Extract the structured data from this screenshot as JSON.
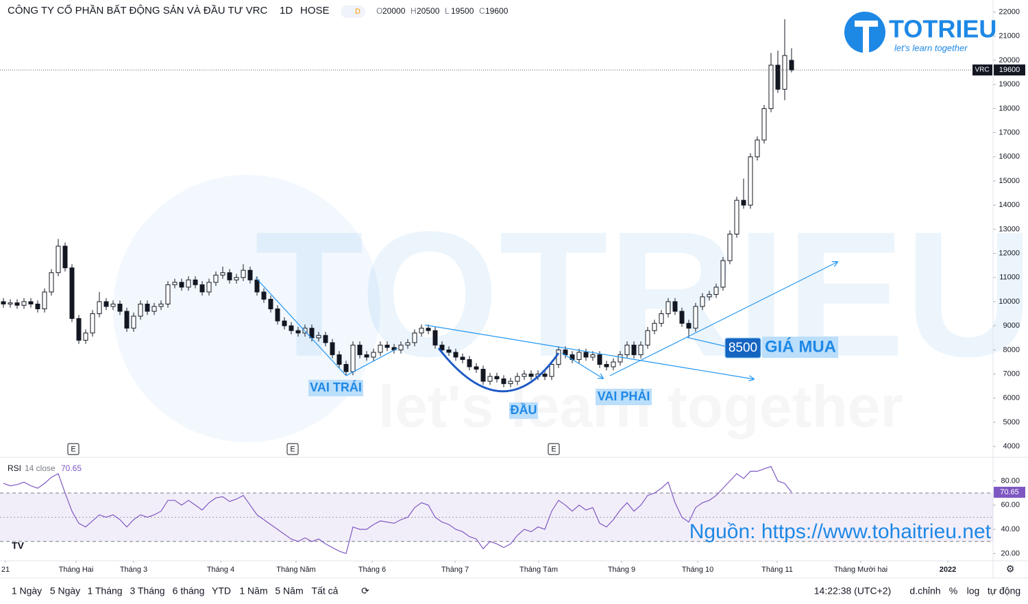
{
  "header": {
    "title": "CÔNG TY CỔ PHẦN BẤT ĐỘNG SẢN VÀ ĐẦU TƯ VRC",
    "interval": "1D",
    "exchange": "HOSE",
    "badge": "D",
    "ohlc_labels": [
      "O",
      "H",
      "L",
      "C"
    ]
  },
  "logo": {
    "name": "TOTRIEU",
    "tagline": "let's learn together"
  },
  "watermark": {
    "name": "TOTRIEU",
    "tagline": "let's learn together"
  },
  "chart_data": {
    "type": "candlestick",
    "symbol": "VRC",
    "up_color": "#ffffff",
    "down_color": "#131722",
    "ohlc": [
      [
        10000,
        10150,
        9750,
        9900
      ],
      [
        9900,
        10100,
        9750,
        9950
      ],
      [
        9950,
        10100,
        9700,
        9850
      ],
      [
        9850,
        10150,
        9700,
        10000
      ],
      [
        10000,
        10150,
        9750,
        9900
      ],
      [
        9900,
        10050,
        9550,
        9700
      ],
      [
        9700,
        10550,
        9550,
        10400
      ],
      [
        10400,
        11350,
        10250,
        11200
      ],
      [
        11200,
        12600,
        11050,
        12300
      ],
      [
        12300,
        12450,
        11250,
        11400
      ],
      [
        11400,
        11550,
        9150,
        9300
      ],
      [
        9300,
        9450,
        8250,
        8400
      ],
      [
        8400,
        8850,
        8250,
        8700
      ],
      [
        8700,
        9650,
        8550,
        9500
      ],
      [
        9500,
        10400,
        9350,
        10000
      ],
      [
        10000,
        10150,
        9650,
        9800
      ],
      [
        9800,
        10050,
        9650,
        9900
      ],
      [
        9900,
        10050,
        9450,
        9600
      ],
      [
        9600,
        9750,
        8750,
        8900
      ],
      [
        8900,
        9550,
        8750,
        9400
      ],
      [
        9400,
        10050,
        9250,
        9900
      ],
      [
        9900,
        10050,
        9450,
        9600
      ],
      [
        9600,
        9950,
        9450,
        9800
      ],
      [
        9800,
        10050,
        9650,
        9900
      ],
      [
        9900,
        10850,
        9750,
        10700
      ],
      [
        10700,
        10950,
        10550,
        10800
      ],
      [
        10800,
        10950,
        10450,
        10600
      ],
      [
        10600,
        11050,
        10450,
        10900
      ],
      [
        10900,
        11050,
        10550,
        10700
      ],
      [
        10700,
        10850,
        10250,
        10400
      ],
      [
        10400,
        10950,
        10250,
        10800
      ],
      [
        10800,
        11250,
        10650,
        11100
      ],
      [
        11100,
        11450,
        10950,
        11200
      ],
      [
        11200,
        11350,
        10750,
        10900
      ],
      [
        10900,
        11150,
        10750,
        11000
      ],
      [
        11000,
        11550,
        10850,
        11300
      ],
      [
        11300,
        11450,
        10750,
        10900
      ],
      [
        10900,
        11050,
        10250,
        10400
      ],
      [
        10400,
        10550,
        9950,
        10100
      ],
      [
        10100,
        10250,
        9550,
        9700
      ],
      [
        9700,
        9850,
        9050,
        9200
      ],
      [
        9200,
        9350,
        8850,
        9000
      ],
      [
        9000,
        9150,
        8650,
        8800
      ],
      [
        8800,
        8950,
        8550,
        8700
      ],
      [
        8700,
        9050,
        8550,
        8900
      ],
      [
        8900,
        9050,
        8350,
        8500
      ],
      [
        8500,
        8750,
        8350,
        8600
      ],
      [
        8600,
        8750,
        8150,
        8300
      ],
      [
        8300,
        8450,
        7650,
        7800
      ],
      [
        7800,
        7950,
        7250,
        7400
      ],
      [
        7400,
        7550,
        6950,
        7100
      ],
      [
        7100,
        8350,
        6950,
        8200
      ],
      [
        8200,
        8350,
        7650,
        7800
      ],
      [
        7800,
        7950,
        7550,
        7700
      ],
      [
        7700,
        8050,
        7550,
        7900
      ],
      [
        7900,
        8350,
        7750,
        8200
      ],
      [
        8200,
        8350,
        7950,
        8100
      ],
      [
        8100,
        8250,
        7850,
        8000
      ],
      [
        8000,
        8350,
        7850,
        8200
      ],
      [
        8200,
        8450,
        8050,
        8300
      ],
      [
        8300,
        8850,
        8150,
        8700
      ],
      [
        8700,
        9050,
        8550,
        8900
      ],
      [
        8900,
        9050,
        8650,
        8800
      ],
      [
        8800,
        8950,
        8050,
        8200
      ],
      [
        8200,
        8350,
        7850,
        8000
      ],
      [
        8000,
        8150,
        7750,
        7900
      ],
      [
        7900,
        8050,
        7550,
        7700
      ],
      [
        7700,
        7850,
        7450,
        7600
      ],
      [
        7600,
        7750,
        7150,
        7300
      ],
      [
        7300,
        7450,
        7050,
        7200
      ],
      [
        7200,
        7350,
        6550,
        6700
      ],
      [
        6700,
        7050,
        6550,
        6900
      ],
      [
        6900,
        7050,
        6650,
        6800
      ],
      [
        6800,
        6950,
        6450,
        6600
      ],
      [
        6600,
        6850,
        6450,
        6700
      ],
      [
        6700,
        7050,
        6550,
        6900
      ],
      [
        6900,
        7150,
        6750,
        7000
      ],
      [
        7000,
        7150,
        6750,
        6900
      ],
      [
        6900,
        7150,
        6750,
        7000
      ],
      [
        7000,
        7150,
        6750,
        6900
      ],
      [
        6900,
        7550,
        6750,
        7400
      ],
      [
        7400,
        8150,
        7250,
        8000
      ],
      [
        8000,
        8150,
        7650,
        7800
      ],
      [
        7800,
        7950,
        7450,
        7600
      ],
      [
        7600,
        8050,
        7450,
        7900
      ],
      [
        7900,
        8050,
        7550,
        7700
      ],
      [
        7700,
        7950,
        7550,
        7800
      ],
      [
        7800,
        7950,
        7250,
        7400
      ],
      [
        7400,
        7550,
        7150,
        7300
      ],
      [
        7300,
        7650,
        7150,
        7500
      ],
      [
        7500,
        7950,
        7350,
        7800
      ],
      [
        7800,
        8350,
        7650,
        8200
      ],
      [
        8200,
        8350,
        7650,
        7800
      ],
      [
        7800,
        8350,
        7650,
        8200
      ],
      [
        8200,
        8950,
        8050,
        8800
      ],
      [
        8800,
        9250,
        8650,
        9100
      ],
      [
        9100,
        9650,
        8950,
        9500
      ],
      [
        9500,
        10150,
        9350,
        10000
      ],
      [
        10000,
        10150,
        9450,
        9600
      ],
      [
        9600,
        9750,
        8950,
        9100
      ],
      [
        9100,
        9250,
        8500,
        8900
      ],
      [
        8900,
        9950,
        8750,
        9800
      ],
      [
        9800,
        10350,
        9650,
        10200
      ],
      [
        10200,
        10450,
        10050,
        10300
      ],
      [
        10300,
        10750,
        10150,
        10600
      ],
      [
        10600,
        11850,
        10450,
        11700
      ],
      [
        11700,
        12950,
        11550,
        12800
      ],
      [
        12800,
        14350,
        12650,
        14200
      ],
      [
        14200,
        15100,
        13850,
        14000
      ],
      [
        14000,
        16150,
        13850,
        16000
      ],
      [
        16000,
        16850,
        15850,
        16700
      ],
      [
        16700,
        18150,
        16550,
        18000
      ],
      [
        18000,
        20300,
        17850,
        19800
      ],
      [
        19800,
        20400,
        18650,
        18800
      ],
      [
        18800,
        21700,
        18350,
        20200
      ],
      [
        20000,
        20500,
        19500,
        19600
      ]
    ],
    "xlim": [
      0,
      144.8
    ],
    "xticks": [
      {
        "value": 0.8,
        "label": "21"
      },
      {
        "value": 11.1,
        "label": "Tháng Hai"
      },
      {
        "value": 19.5,
        "label": "Tháng 3"
      },
      {
        "value": 32.2,
        "label": "Tháng 4"
      },
      {
        "value": 43.2,
        "label": "Tháng Năm"
      },
      {
        "value": 54.3,
        "label": "Tháng 6"
      },
      {
        "value": 66.4,
        "label": "Tháng 7"
      },
      {
        "value": 78.6,
        "label": "Tháng Tám"
      },
      {
        "value": 90.7,
        "label": "Tháng 9"
      },
      {
        "value": 101.8,
        "label": "Tháng 10"
      },
      {
        "value": 113.4,
        "label": "Tháng 11"
      },
      {
        "value": 125.6,
        "label": "Tháng Mười hai"
      },
      {
        "value": 138.3,
        "label": "2022"
      }
    ],
    "ylim": [
      3550,
      22500
    ],
    "yticks": [
      4000,
      5000,
      6000,
      7000,
      8000,
      9000,
      10000,
      11000,
      12000,
      13000,
      14000,
      15000,
      16000,
      17000,
      18000,
      19000,
      20000,
      21000,
      22000
    ],
    "annotations": {
      "left_shoulder": "VAI TRÁI",
      "head": "ĐẦU",
      "right_shoulder": "VAI PHẢI",
      "buy_price": 8500,
      "buy_label": "GIÁ MUA",
      "source": "Nguồn: https://www.tohaitrieu.net"
    },
    "events": [
      "E",
      "E",
      "E"
    ],
    "indicator": {
      "type": "line",
      "name": "RSI",
      "params": "14 close",
      "color": "#7e57c2",
      "values": [
        78,
        76,
        77,
        79,
        76,
        74,
        78,
        83,
        86,
        70,
        55,
        45,
        42,
        47,
        52,
        50,
        52,
        48,
        42,
        48,
        52,
        50,
        52,
        55,
        64,
        64,
        60,
        64,
        60,
        56,
        62,
        66,
        67,
        63,
        65,
        68,
        60,
        52,
        48,
        44,
        40,
        36,
        32,
        30,
        33,
        30,
        32,
        28,
        25,
        22,
        20,
        42,
        40,
        40,
        44,
        47,
        46,
        45,
        48,
        50,
        58,
        62,
        60,
        50,
        46,
        44,
        40,
        38,
        34,
        32,
        24,
        30,
        28,
        25,
        28,
        35,
        40,
        38,
        42,
        40,
        55,
        64,
        60,
        55,
        60,
        56,
        58,
        45,
        42,
        48,
        56,
        62,
        55,
        60,
        68,
        70,
        74,
        79,
        62,
        50,
        46,
        58,
        62,
        64,
        68,
        74,
        80,
        86,
        82,
        88,
        88,
        90,
        92,
        80,
        78,
        70.65
      ],
      "ylim": [
        14,
        99
      ],
      "yticks": [
        {
          "value": 20,
          "label": "20.00"
        },
        {
          "value": 40,
          "label": "40.00"
        },
        {
          "value": 60,
          "label": "60.00"
        },
        {
          "value": 80,
          "label": "80.00"
        }
      ],
      "band": [
        30,
        70
      ],
      "midline": 50
    }
  },
  "toolbar": {
    "ranges": [
      "1 Ngày",
      "5 Ngày",
      "1 Tháng",
      "3 Tháng",
      "6 tháng",
      "YTD",
      "1 Năm",
      "5 Năm",
      "Tất cả"
    ],
    "time": "14:22:38 (UTC+2)",
    "options": [
      "d.chỉnh",
      "%",
      "log",
      "tự động"
    ]
  }
}
